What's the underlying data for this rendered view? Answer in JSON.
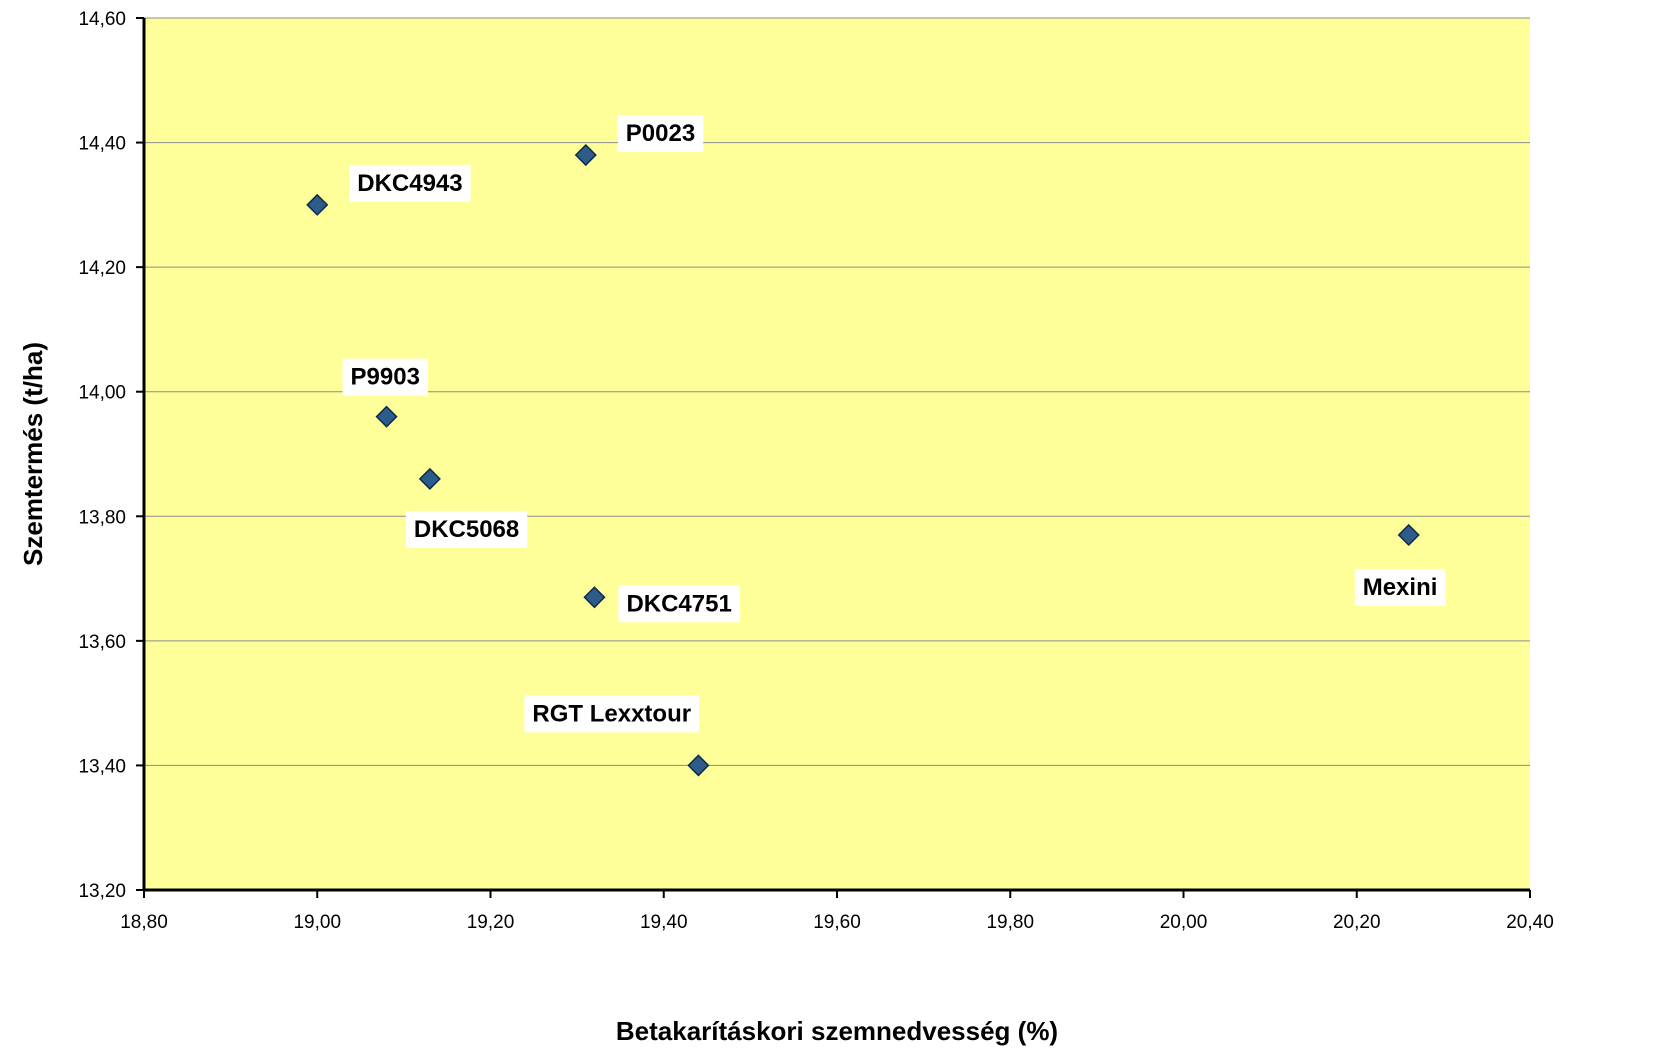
{
  "chart_data": {
    "type": "scatter",
    "title": "",
    "xlabel": "Betakarításkori szemnedvesség (%)",
    "ylabel": "Szemtermés (t/ha)",
    "xlim": [
      18.8,
      20.4
    ],
    "ylim": [
      13.2,
      14.6
    ],
    "x_ticks": [
      18.8,
      19.0,
      19.2,
      19.4,
      19.6,
      19.8,
      20.0,
      20.2,
      20.4
    ],
    "y_ticks": [
      13.2,
      13.4,
      13.6,
      13.8,
      14.0,
      14.2,
      14.4,
      14.6
    ],
    "x_tick_labels": [
      "18,80",
      "19,00",
      "19,20",
      "19,40",
      "19,60",
      "19,80",
      "20,00",
      "20,20",
      "20,40"
    ],
    "y_tick_labels": [
      "13,20",
      "13,40",
      "13,60",
      "13,80",
      "14,00",
      "14,20",
      "14,40",
      "14,60"
    ],
    "grid": "horizontal",
    "legend": "none",
    "plot_background": "#ffff99",
    "marker_color": "#2e5c8a",
    "points": [
      {
        "label": "DKC4943",
        "x": 19.0,
        "y": 14.3,
        "label_position": "upper-right"
      },
      {
        "label": "P0023",
        "x": 19.31,
        "y": 14.38,
        "label_position": "upper-right"
      },
      {
        "label": "P9903",
        "x": 19.08,
        "y": 13.96,
        "label_position": "above"
      },
      {
        "label": "DKC5068",
        "x": 19.13,
        "y": 13.86,
        "label_position": "below"
      },
      {
        "label": "DKC4751",
        "x": 19.32,
        "y": 13.67,
        "label_position": "right"
      },
      {
        "label": "RGT Lexxtour",
        "x": 19.44,
        "y": 13.4,
        "label_position": "above-left"
      },
      {
        "label": "Mexini",
        "x": 20.26,
        "y": 13.77,
        "label_position": "below"
      }
    ]
  }
}
